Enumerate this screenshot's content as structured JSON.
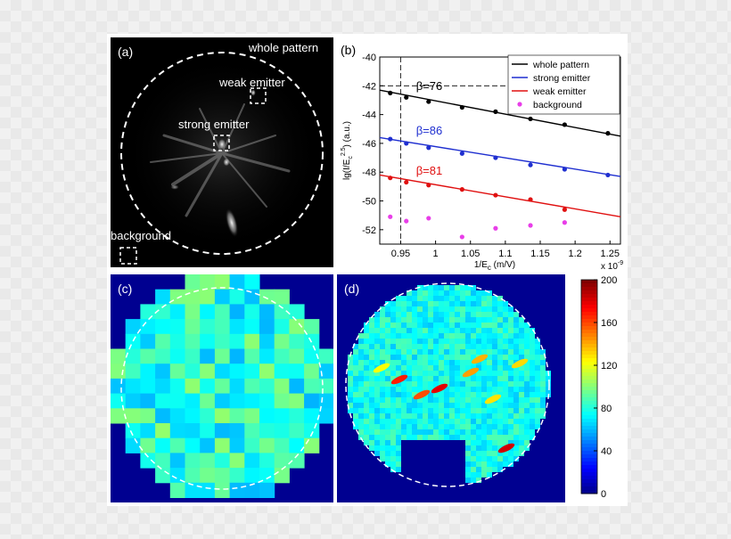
{
  "panels": {
    "a": {
      "label": "(a)",
      "annotations": {
        "whole": "whole pattern",
        "weak": "weak emitter",
        "strong": "strong emitter",
        "background": "background"
      }
    },
    "b": {
      "label": "(b)"
    },
    "c": {
      "label": "(c)"
    },
    "d": {
      "label": "(d)"
    }
  },
  "colorbar": {
    "ticks": [
      "200",
      "160",
      "120",
      "80",
      "40",
      "0"
    ],
    "range": [
      0,
      200
    ],
    "colormap": "jet"
  },
  "chart_data": [
    {
      "type": "scatter",
      "panel": "(b)",
      "xlabel": "1/E",
      "xlabel_sub": "c",
      "xlabel_unit": " (m/V)",
      "ylabel": "lg(I/E",
      "ylabel_sub": "c",
      "ylabel_sup": "2.5",
      "ylabel_unit": ") (a.u.)",
      "x_multiplier": "x 10",
      "x_multiplier_exp": "-9",
      "xlim": [
        0.92,
        1.265
      ],
      "ylim": [
        -53,
        -40
      ],
      "xticks": [
        "0.95",
        "1",
        "1.05",
        "1.1",
        "1.15",
        "1.2",
        "1.25"
      ],
      "xtick_values": [
        0.95,
        1.0,
        1.05,
        1.1,
        1.15,
        1.2,
        1.25
      ],
      "yticks": [
        "-40",
        "-42",
        "-44",
        "-46",
        "-48",
        "-50",
        "-52"
      ],
      "ytick_values": [
        -40,
        -42,
        -44,
        -46,
        -48,
        -50,
        -52
      ],
      "legend_position": "top-right",
      "series": [
        {
          "name": "whole pattern",
          "color": "#000000",
          "x": [
            0.935,
            0.958,
            0.99,
            1.038,
            1.086,
            1.136,
            1.185,
            1.247
          ],
          "y": [
            -42.5,
            -42.8,
            -43.1,
            -43.5,
            -43.8,
            -44.3,
            -44.7,
            -45.3
          ],
          "fit": [
            [
              0.92,
              -42.3
            ],
            [
              1.265,
              -45.5
            ]
          ],
          "beta": "β=76"
        },
        {
          "name": "strong emitter",
          "color": "#1f2fd0",
          "x": [
            0.935,
            0.958,
            0.99,
            1.038,
            1.086,
            1.136,
            1.185,
            1.247
          ],
          "y": [
            -45.7,
            -46.0,
            -46.3,
            -46.7,
            -47.0,
            -47.5,
            -47.8,
            -48.2
          ],
          "fit": [
            [
              0.92,
              -45.6
            ],
            [
              1.265,
              -48.3
            ]
          ],
          "beta": "β=86"
        },
        {
          "name": "weak emitter",
          "color": "#e01010",
          "x": [
            0.935,
            0.958,
            0.99,
            1.038,
            1.086,
            1.136,
            1.185
          ],
          "y": [
            -48.4,
            -48.7,
            -48.9,
            -49.2,
            -49.6,
            -49.9,
            -50.6
          ],
          "fit": [
            [
              0.92,
              -48.2
            ],
            [
              1.265,
              -51.1
            ]
          ],
          "beta": "β=81"
        },
        {
          "name": "background",
          "color": "#e83ee8",
          "x": [
            0.935,
            0.958,
            0.99,
            1.038,
            1.086,
            1.136,
            1.185
          ],
          "y": [
            -51.1,
            -51.4,
            -51.2,
            -52.5,
            -51.9,
            -51.7,
            -51.5
          ]
        }
      ]
    }
  ]
}
